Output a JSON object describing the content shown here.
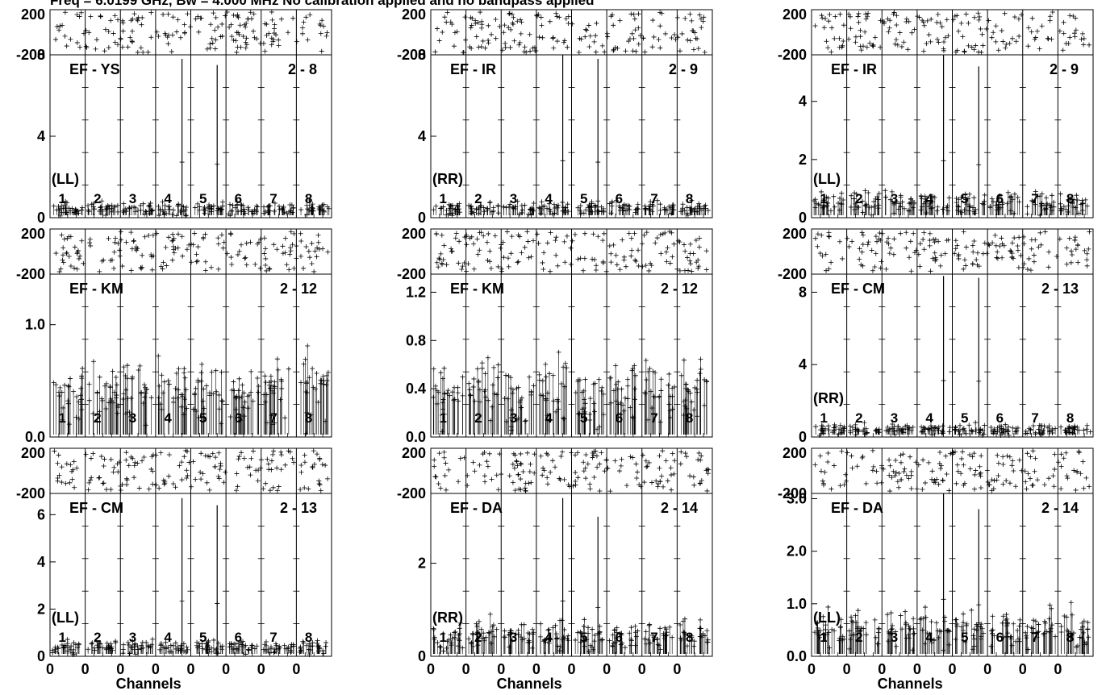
{
  "title": "Freq = 6.0199 GHz, Bw = 4.000 MHz   No calibration applied and no bandpass applied",
  "xlabel": "Channels",
  "x_tick_label": "0",
  "phase_ticks": [
    "200",
    "-200"
  ],
  "chart_data": [
    {
      "type": "scatter",
      "baseline": "EF - YS",
      "baseline_number": "2 - 8",
      "polarization": "(LL)",
      "subbands": [
        "1",
        "2",
        "3",
        "4",
        "5",
        "6",
        "7",
        "8"
      ],
      "phase_ylim": [
        -200,
        200
      ],
      "amp_ylim": [
        0,
        8
      ],
      "amp_yticks": [
        "0",
        "4",
        "8"
      ],
      "amp_noise_level": 0.45,
      "spikes": [
        {
          "subband": 4,
          "value": 7.8
        },
        {
          "subband": 5,
          "value": 7.5
        }
      ]
    },
    {
      "type": "scatter",
      "baseline": "EF - IR",
      "baseline_number": "2 - 9",
      "polarization": "(RR)",
      "subbands": [
        "1",
        "2",
        "3",
        "4",
        "5",
        "6",
        "7",
        "8"
      ],
      "phase_ylim": [
        -200,
        200
      ],
      "amp_ylim": [
        0,
        8
      ],
      "amp_yticks": [
        "0",
        "4",
        "8"
      ],
      "amp_noise_level": 0.45,
      "spikes": [
        {
          "subband": 4,
          "value": 8.0
        },
        {
          "subband": 5,
          "value": 7.8
        }
      ]
    },
    {
      "type": "scatter",
      "baseline": "EF - IR",
      "baseline_number": "2 - 9",
      "polarization": "(LL)",
      "subbands": [
        "1",
        "2",
        "3",
        "4",
        "5",
        "6",
        "7",
        "8"
      ],
      "phase_ylim": [
        -200,
        200
      ],
      "amp_ylim": [
        0,
        5.6
      ],
      "amp_yticks": [
        "0",
        "2",
        "4"
      ],
      "amp_noise_level": 0.5,
      "spikes": [
        {
          "subband": 4,
          "value": 5.6
        },
        {
          "subband": 5,
          "value": 5.2
        }
      ]
    },
    {
      "type": "scatter",
      "baseline": "EF - KM",
      "baseline_number": "2 - 12",
      "polarization": "",
      "subbands": [
        "1",
        "2",
        "3",
        "4",
        "5",
        "6",
        "7",
        "8"
      ],
      "phase_ylim": [
        -200,
        200
      ],
      "amp_ylim": [
        0,
        1.45
      ],
      "amp_yticks": [
        "0.0",
        "1.0"
      ],
      "amp_noise_level": 0.4,
      "spikes": []
    },
    {
      "type": "scatter",
      "baseline": "EF - KM",
      "baseline_number": "2 - 12",
      "polarization": "",
      "subbands": [
        "1",
        "2",
        "3",
        "4",
        "5",
        "6",
        "7",
        "8"
      ],
      "phase_ylim": [
        -200,
        200
      ],
      "amp_ylim": [
        0,
        1.35
      ],
      "amp_yticks": [
        "0.0",
        "0.4",
        "0.8",
        "1.2"
      ],
      "amp_noise_level": 0.38,
      "spikes": []
    },
    {
      "type": "scatter",
      "baseline": "EF - CM",
      "baseline_number": "2 - 13",
      "polarization": "(RR)",
      "subbands": [
        "1",
        "2",
        "3",
        "4",
        "5",
        "6",
        "7",
        "8"
      ],
      "phase_ylim": [
        -200,
        200
      ],
      "amp_ylim": [
        0,
        9
      ],
      "amp_yticks": [
        "0",
        "4",
        "8"
      ],
      "amp_noise_level": 0.4,
      "spikes": [
        {
          "subband": 4,
          "value": 8.9
        },
        {
          "subband": 5,
          "value": 8.8
        }
      ]
    },
    {
      "type": "scatter",
      "baseline": "EF - CM",
      "baseline_number": "2 - 13",
      "polarization": "(LL)",
      "subbands": [
        "1",
        "2",
        "3",
        "4",
        "5",
        "6",
        "7",
        "8"
      ],
      "phase_ylim": [
        -200,
        200
      ],
      "amp_ylim": [
        0,
        6.9
      ],
      "amp_yticks": [
        "0",
        "2",
        "4",
        "6"
      ],
      "amp_noise_level": 0.4,
      "spikes": [
        {
          "subband": 4,
          "value": 6.7
        },
        {
          "subband": 5,
          "value": 6.4
        }
      ]
    },
    {
      "type": "scatter",
      "baseline": "EF - DA",
      "baseline_number": "2 - 14",
      "polarization": "(RR)",
      "subbands": [
        "1",
        "2",
        "3",
        "4",
        "5",
        "6",
        "7",
        "8"
      ],
      "phase_ylim": [
        -200,
        200
      ],
      "amp_ylim": [
        0,
        3.5
      ],
      "amp_yticks": [
        "0",
        "2"
      ],
      "amp_noise_level": 0.45,
      "spikes": [
        {
          "subband": 4,
          "value": 3.4
        },
        {
          "subband": 5,
          "value": 3.0
        }
      ]
    },
    {
      "type": "scatter",
      "baseline": "EF - DA",
      "baseline_number": "2 - 14",
      "polarization": "(LL)",
      "subbands": [
        "1",
        "2",
        "3",
        "4",
        "5",
        "6",
        "7",
        "8"
      ],
      "phase_ylim": [
        -200,
        200
      ],
      "amp_ylim": [
        0,
        3.1
      ],
      "amp_yticks": [
        "0.0",
        "1.0",
        "2.0",
        "3.0"
      ],
      "amp_noise_level": 0.5,
      "spikes": [
        {
          "subband": 4,
          "value": 3.1
        },
        {
          "subband": 5,
          "value": 2.8
        }
      ]
    }
  ]
}
